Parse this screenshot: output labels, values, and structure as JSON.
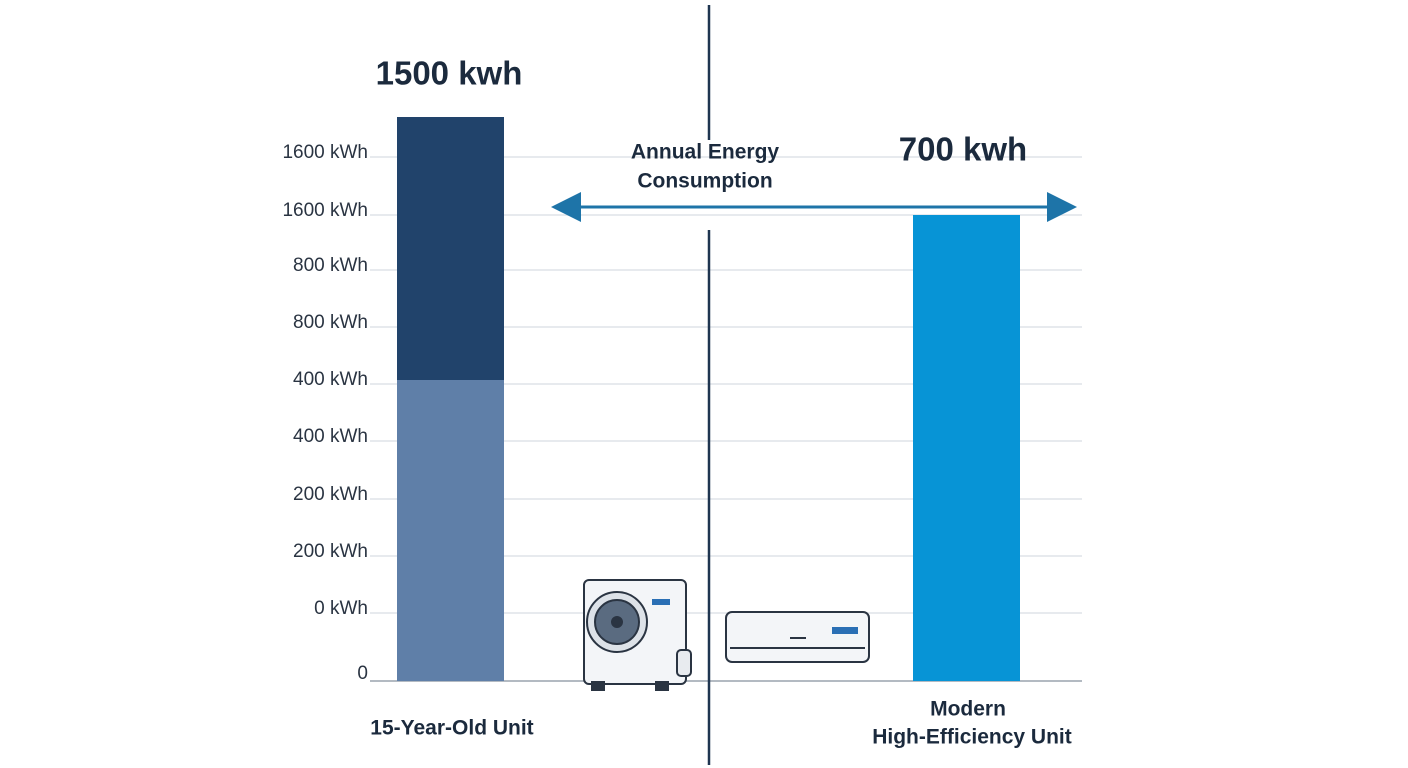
{
  "header": {
    "old_value": "1500 kwh",
    "new_value": "700 kwh",
    "arrow_label": [
      "Annual Energy",
      "Consumption"
    ]
  },
  "axis": {
    "tick_labels": [
      "1600 kWh",
      "1600 kWh",
      "800 kWh",
      "800 kWh",
      "400 kWh",
      "400 kWh",
      "200 kWh",
      "200 kWh",
      "0 kWh",
      "0"
    ]
  },
  "units": {
    "old": "15-Year-Old Unit",
    "new": [
      "Modern",
      "High-Efficiency Unit"
    ]
  }
}
